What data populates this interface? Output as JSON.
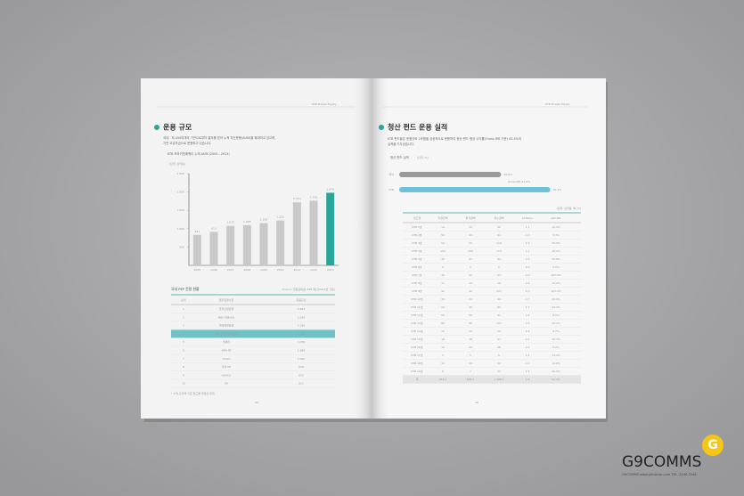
{
  "left_page": {
    "header": "KTB Private Equity",
    "title": "운용 규모",
    "paragraph": [
      "국내 · 외 450여개의 기관으로부터 출자를 받아 누적 자산운용(AUM)을 확대하고 있으며,",
      "기관 고유자금으로 운용하고 있습니다."
    ],
    "chart": {
      "type": "bar",
      "subtitle": "KTB 프라이빗에쿼티 누적 AUM (2005 - 2013)",
      "unit": "(단위: 십억원)",
      "categories": [
        "2005",
        "2006",
        "2007",
        "2008",
        "2009",
        "2010",
        "2011",
        "2012",
        "2013"
      ],
      "values": [
        831,
        913,
        1075,
        1096,
        1150,
        1223,
        1719,
        1765,
        1979
      ],
      "value_labels": [
        "831",
        "913",
        "1,075",
        "1,096",
        "1,150",
        "1,223",
        "1,719",
        "1,765",
        "1,979"
      ],
      "ylim": [
        0,
        2500
      ],
      "yticks": [
        {
          "value": 500,
          "label": "500"
        },
        {
          "value": 1000,
          "label": "1,000"
        },
        {
          "value": 1500,
          "label": "1,500"
        },
        {
          "value": 2000,
          "label": "2,000"
        },
        {
          "value": 2500,
          "label": "2,500"
        }
      ],
      "color": "#c9c9c9",
      "highlight_color": "#2aa59a"
    },
    "table": {
      "title": "국내 PEF 운용 현황",
      "source": "Source: 금융감독원, KTB 계산(2013년 기준)",
      "columns": [
        "순위",
        "업무집행사원",
        "운용규모"
      ],
      "rows": [
        [
          "1",
          "한국산업은행",
          "4,664"
        ],
        [
          "2",
          "MBK 파트너스",
          "2,926"
        ],
        [
          "3",
          "미래에셋증권",
          "2,326"
        ],
        [
          "4",
          "KTB 프라이빗에쿼티",
          "1,979"
        ],
        [
          "5",
          "맥쿼리",
          "1,250"
        ],
        [
          "6",
          "IMM PE",
          "1,089"
        ],
        [
          "7",
          "VOGO",
          "1,050"
        ],
        [
          "8",
          "우리 PE",
          "930"
        ],
        [
          "9",
          "LKMCO",
          "850"
        ],
        [
          "10",
          "SK",
          "811"
        ]
      ],
      "footnote": "* 누적 출자액 기준 펀드별 약정금 합계"
    },
    "page_number": "26"
  },
  "right_page": {
    "header": "KTB Private Equity",
    "title": "청산 펀드 운용 실적",
    "paragraph": [
      "KTB 펀드들은 운용규모 2조원을 성공적으로 운용하여 청산 펀드 평균 수익률(Gross IRR 기준) 42.4%의",
      "실적을 거두었습니다."
    ],
    "chart": {
      "type": "bar",
      "subtitle": "청산 펀드 실적",
      "unit": "(단위: %)",
      "categories": [
        "국내",
        "KTB"
      ],
      "values": [
        28.6,
        42.4
      ],
      "value_labels": [
        "28.6%",
        "42.4%"
      ],
      "xlim": [
        0,
        50
      ],
      "colors": [
        "#9a9a9a",
        "#6fc1d8"
      ],
      "annotation": "Gross IRR 42.4%"
    },
    "table": {
      "unit": "(단위: 십억원, 배, %)",
      "columns": [
        "펀드명",
        "약정금액",
        "투자금액",
        "회수금액",
        "Multiple",
        "Net IRR"
      ],
      "rows": [
        [
          "KTB 1호",
          "14",
          "14",
          "22",
          "1.1",
          "15.4%"
        ],
        [
          "KTB 2호",
          "50",
          "49",
          "61",
          "1.3",
          "5.3%"
        ],
        [
          "KTB 3호",
          "50",
          "50",
          "116",
          "1.6",
          "20.5%"
        ],
        [
          "KTB 4호",
          "100",
          "100",
          "113",
          "1.1",
          "10.1%"
        ],
        [
          "KTB 5호",
          "30",
          "37",
          "54",
          "1.5",
          "40.8%"
        ],
        [
          "KTB 6호",
          "5",
          "5",
          "5",
          "1.0",
          "0.0%"
        ],
        [
          "KTB 7호",
          "30",
          "32",
          "64",
          "2.0",
          "187.9%"
        ],
        [
          "KTB 8호",
          "11",
          "10",
          "16",
          "1.6",
          "15.2%"
        ],
        [
          "KTB 9호",
          "41",
          "40",
          "201",
          "5.0",
          "163.2%"
        ],
        [
          "KTB 10호",
          "30",
          "24",
          "40",
          "1.7",
          "64.4%"
        ],
        [
          "KTB 11호",
          "60",
          "49",
          "80",
          "1.7",
          "24.0%"
        ],
        [
          "KTB 12호",
          "50",
          "35",
          "41",
          "1.2",
          "8.1%"
        ],
        [
          "KTB 13호",
          "80",
          "80",
          "137",
          "1.5",
          "16.2%"
        ],
        [
          "KTB 14호",
          "10",
          "10",
          "15",
          "1.5",
          "8.7%"
        ],
        [
          "KTB 15호",
          "18",
          "18",
          "37",
          "2.1",
          "45.7%"
        ],
        [
          "KTB 16호",
          "14",
          "20",
          "28",
          "1.5",
          "5.2%"
        ],
        [
          "KTB 17호",
          "5",
          "5",
          "6",
          "1.3",
          "13.2%"
        ],
        [
          "KTB 18호",
          "11",
          "10",
          "12",
          "1.2",
          "14.6%"
        ],
        [
          "KTB 19호",
          "8",
          "7",
          "11",
          "1.5",
          "40.5%"
        ],
        [
          "계",
          "643.2",
          "648.1",
          "1,186.1",
          "1.8",
          "42.4%"
        ]
      ]
    },
    "page_number": "28"
  },
  "logo": {
    "name": "G9COMMS",
    "letter": "G",
    "tagline": "G9COMMS  www.g9comm.com  TEL. 2244-2546"
  }
}
